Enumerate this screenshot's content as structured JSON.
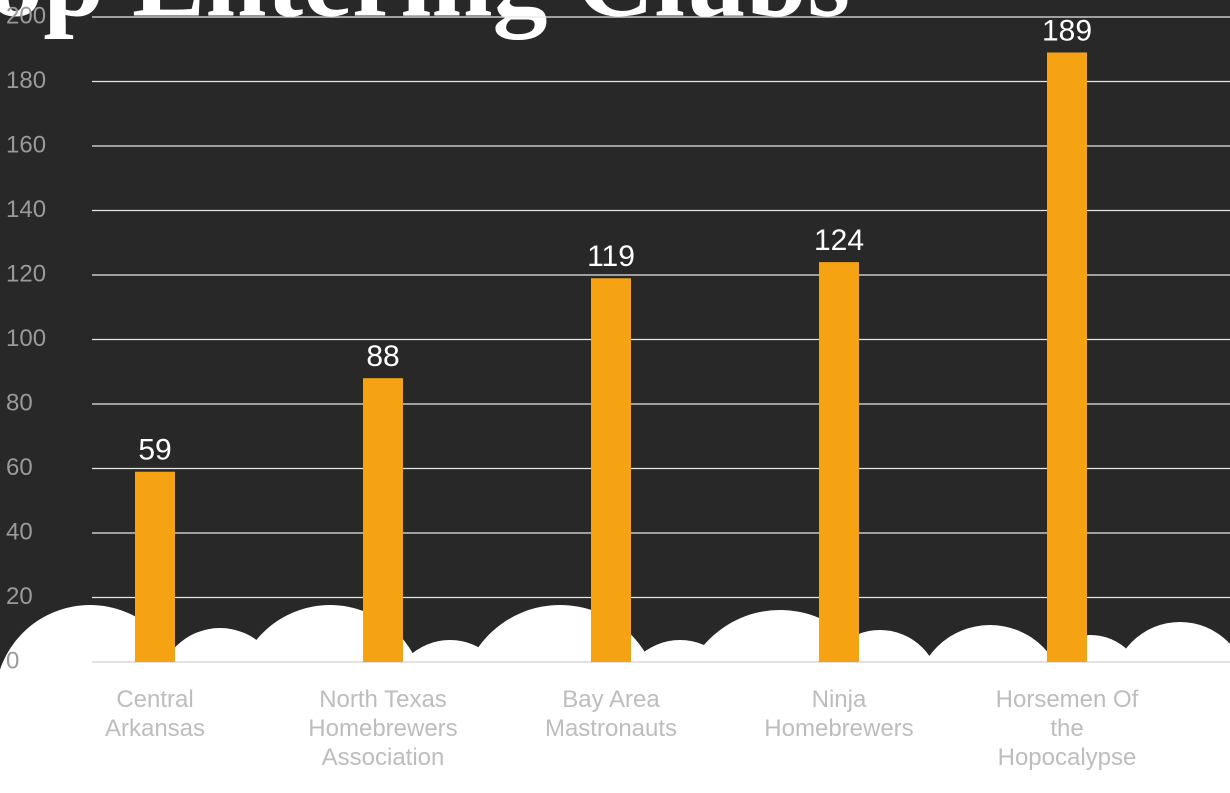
{
  "chart_data": {
    "type": "bar",
    "title": "Top Entering Clubs",
    "categories": [
      "Central Arkansas",
      "North Texas Homebrewers Association",
      "Bay Area Mastronauts",
      "Ninja Homebrewers",
      "Horsemen Of the Hopocalypse"
    ],
    "values": [
      59,
      88,
      119,
      124,
      189
    ],
    "color": "#f5a313",
    "ylim": [
      0,
      200
    ],
    "yticks": [
      0,
      20,
      40,
      60,
      80,
      100,
      120,
      140,
      160,
      180,
      200
    ],
    "grid": true
  }
}
